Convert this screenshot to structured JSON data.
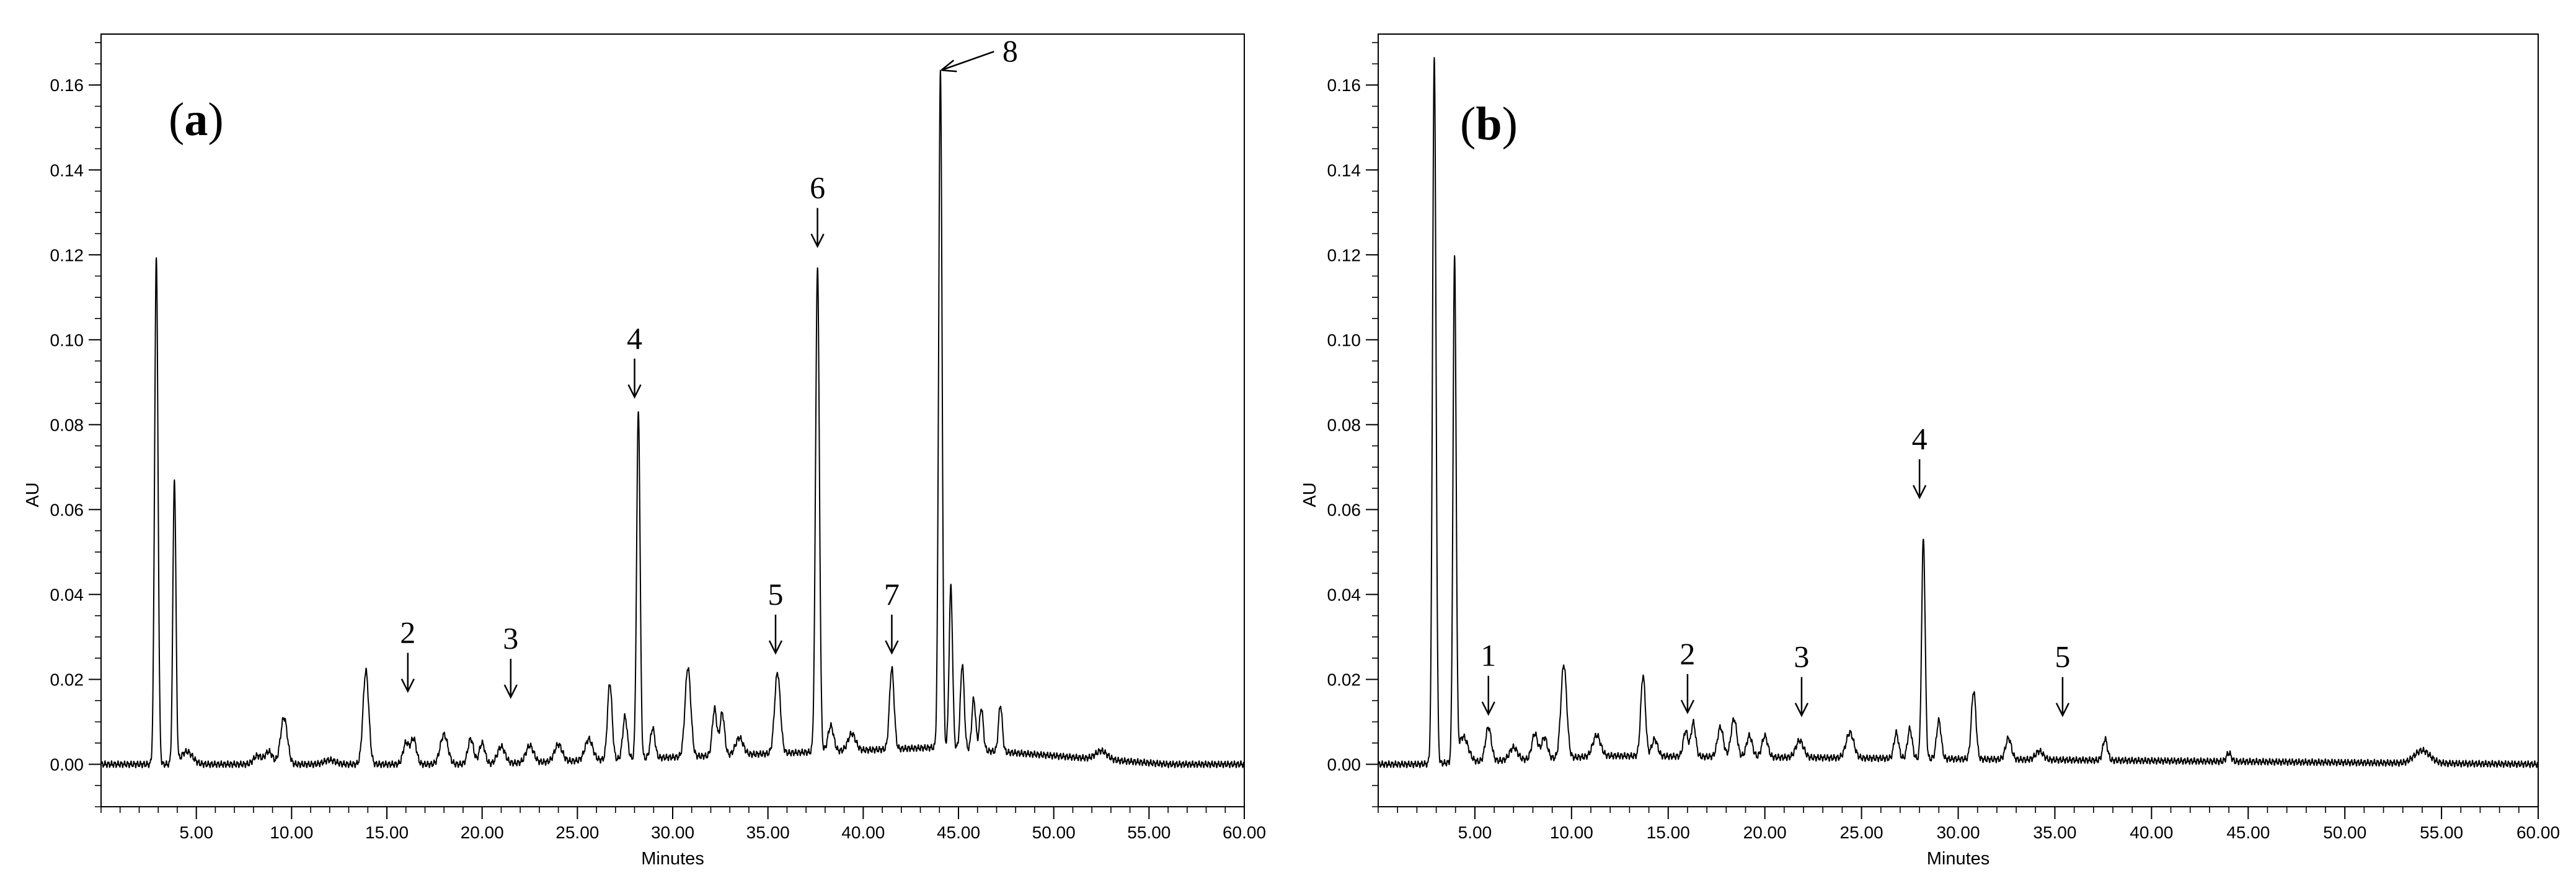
{
  "chart_data": [
    {
      "type": "line",
      "panel_label": "(a)",
      "panel_letter": "a",
      "xlabel": "Minutes",
      "ylabel": "AU",
      "xlim": [
        0,
        60
      ],
      "ylim": [
        -0.01,
        0.172
      ],
      "xticks": [
        5,
        10,
        15,
        20,
        25,
        30,
        35,
        40,
        45,
        50,
        55,
        60
      ],
      "xtick_labels": [
        "5.00",
        "10.00",
        "15.00",
        "20.00",
        "25.00",
        "30.00",
        "35.00",
        "40.00",
        "45.00",
        "50.00",
        "55.00",
        "60.00"
      ],
      "yticks": [
        0,
        0.02,
        0.04,
        0.06,
        0.08,
        0.1,
        0.12,
        0.14,
        0.16
      ],
      "ytick_labels": [
        "0.00",
        "0.02",
        "0.04",
        "0.06",
        "0.08",
        "0.10",
        "0.12",
        "0.14",
        "0.16"
      ],
      "line_color": "#000000",
      "baseline": 0.0,
      "peaks": [
        {
          "t": 2.9,
          "h": 0.119,
          "w": 0.09
        },
        {
          "t": 3.85,
          "h": 0.067,
          "w": 0.08
        },
        {
          "t": 4.5,
          "h": 0.003,
          "w": 0.3
        },
        {
          "t": 8.2,
          "h": 0.002,
          "w": 0.2
        },
        {
          "t": 8.8,
          "h": 0.003,
          "w": 0.2
        },
        {
          "t": 9.6,
          "h": 0.011,
          "w": 0.18
        },
        {
          "t": 12.0,
          "h": 0.001,
          "w": 0.3
        },
        {
          "t": 13.9,
          "h": 0.022,
          "w": 0.15
        },
        {
          "t": 16.0,
          "h": 0.005,
          "w": 0.15
        },
        {
          "t": 16.4,
          "h": 0.006,
          "w": 0.15
        },
        {
          "t": 18.0,
          "h": 0.007,
          "w": 0.2
        },
        {
          "t": 19.4,
          "h": 0.006,
          "w": 0.15
        },
        {
          "t": 20.0,
          "h": 0.005,
          "w": 0.15
        },
        {
          "t": 21.0,
          "h": 0.004,
          "w": 0.2
        },
        {
          "t": 22.5,
          "h": 0.004,
          "w": 0.2
        },
        {
          "t": 24.0,
          "h": 0.004,
          "w": 0.2
        },
        {
          "t": 25.6,
          "h": 0.005,
          "w": 0.2
        },
        {
          "t": 26.7,
          "h": 0.018,
          "w": 0.12
        },
        {
          "t": 27.5,
          "h": 0.01,
          "w": 0.12
        },
        {
          "t": 28.2,
          "h": 0.082,
          "w": 0.09
        },
        {
          "t": 28.95,
          "h": 0.007,
          "w": 0.12
        },
        {
          "t": 30.8,
          "h": 0.021,
          "w": 0.15
        },
        {
          "t": 32.2,
          "h": 0.011,
          "w": 0.12
        },
        {
          "t": 32.6,
          "h": 0.01,
          "w": 0.12
        },
        {
          "t": 33.5,
          "h": 0.004,
          "w": 0.2
        },
        {
          "t": 35.5,
          "h": 0.019,
          "w": 0.15
        },
        {
          "t": 37.6,
          "h": 0.114,
          "w": 0.1
        },
        {
          "t": 38.3,
          "h": 0.006,
          "w": 0.15
        },
        {
          "t": 39.4,
          "h": 0.004,
          "w": 0.2
        },
        {
          "t": 41.5,
          "h": 0.019,
          "w": 0.12
        },
        {
          "t": 44.05,
          "h": 0.159,
          "w": 0.09
        },
        {
          "t": 44.6,
          "h": 0.038,
          "w": 0.09
        },
        {
          "t": 45.2,
          "h": 0.02,
          "w": 0.1
        },
        {
          "t": 45.8,
          "h": 0.012,
          "w": 0.1
        },
        {
          "t": 46.2,
          "h": 0.01,
          "w": 0.1
        },
        {
          "t": 47.2,
          "h": 0.011,
          "w": 0.1
        },
        {
          "t": 52.5,
          "h": 0.002,
          "w": 0.3
        }
      ],
      "hump": {
        "start": 20,
        "peak": 44,
        "end": 56,
        "height": 0.004
      },
      "annotations": [
        {
          "label": "2",
          "x": 16.1,
          "y": 0.0172
        },
        {
          "label": "3",
          "x": 21.5,
          "y": 0.0158
        },
        {
          "label": "4",
          "x": 28.0,
          "y": 0.0865
        },
        {
          "label": "5",
          "x": 35.4,
          "y": 0.0262
        },
        {
          "label": "6",
          "x": 37.6,
          "y": 0.122
        },
        {
          "label": "7",
          "x": 41.5,
          "y": 0.0262
        },
        {
          "label": "8",
          "x": 44.3,
          "y": 0.1665
        }
      ]
    },
    {
      "type": "line",
      "panel_label": "(b)",
      "panel_letter": "b",
      "xlabel": "Minutes",
      "ylabel": "AU",
      "xlim": [
        0,
        60
      ],
      "ylim": [
        -0.01,
        0.172
      ],
      "xticks": [
        5,
        10,
        15,
        20,
        25,
        30,
        35,
        40,
        45,
        50,
        55,
        60
      ],
      "xtick_labels": [
        "5.00",
        "10.00",
        "15.00",
        "20.00",
        "25.00",
        "30.00",
        "35.00",
        "40.00",
        "45.00",
        "50.00",
        "55.00",
        "60.00"
      ],
      "yticks": [
        0,
        0.02,
        0.04,
        0.06,
        0.08,
        0.1,
        0.12,
        0.14,
        0.16
      ],
      "ytick_labels": [
        "0.00",
        "0.02",
        "0.04",
        "0.06",
        "0.08",
        "0.10",
        "0.12",
        "0.14",
        "0.16"
      ],
      "line_color": "#000000",
      "baseline": 0.0,
      "peaks": [
        {
          "t": 2.9,
          "h": 0.166,
          "w": 0.09
        },
        {
          "t": 3.95,
          "h": 0.118,
          "w": 0.08
        },
        {
          "t": 4.4,
          "h": 0.006,
          "w": 0.25
        },
        {
          "t": 5.7,
          "h": 0.008,
          "w": 0.15
        },
        {
          "t": 7.0,
          "h": 0.003,
          "w": 0.2
        },
        {
          "t": 8.1,
          "h": 0.006,
          "w": 0.15
        },
        {
          "t": 8.6,
          "h": 0.005,
          "w": 0.15
        },
        {
          "t": 9.6,
          "h": 0.022,
          "w": 0.15
        },
        {
          "t": 11.3,
          "h": 0.005,
          "w": 0.2
        },
        {
          "t": 13.7,
          "h": 0.019,
          "w": 0.12
        },
        {
          "t": 14.3,
          "h": 0.004,
          "w": 0.15
        },
        {
          "t": 15.9,
          "h": 0.006,
          "w": 0.12
        },
        {
          "t": 16.3,
          "h": 0.008,
          "w": 0.12
        },
        {
          "t": 17.7,
          "h": 0.007,
          "w": 0.15
        },
        {
          "t": 18.4,
          "h": 0.009,
          "w": 0.15
        },
        {
          "t": 19.2,
          "h": 0.005,
          "w": 0.15
        },
        {
          "t": 20.0,
          "h": 0.005,
          "w": 0.15
        },
        {
          "t": 21.8,
          "h": 0.004,
          "w": 0.2
        },
        {
          "t": 24.4,
          "h": 0.006,
          "w": 0.2
        },
        {
          "t": 26.8,
          "h": 0.006,
          "w": 0.12
        },
        {
          "t": 27.5,
          "h": 0.007,
          "w": 0.12
        },
        {
          "t": 28.2,
          "h": 0.052,
          "w": 0.09
        },
        {
          "t": 29.0,
          "h": 0.009,
          "w": 0.12
        },
        {
          "t": 30.8,
          "h": 0.016,
          "w": 0.12
        },
        {
          "t": 32.6,
          "h": 0.005,
          "w": 0.15
        },
        {
          "t": 34.2,
          "h": 0.002,
          "w": 0.2
        },
        {
          "t": 37.6,
          "h": 0.005,
          "w": 0.12
        },
        {
          "t": 44.0,
          "h": 0.002,
          "w": 0.12
        },
        {
          "t": 54.0,
          "h": 0.003,
          "w": 0.4
        }
      ],
      "hump": {
        "start": 2,
        "peak": 12,
        "end": 60,
        "height": 0.002
      },
      "annotations": [
        {
          "label": "1",
          "x": 5.7,
          "y": 0.0118
        },
        {
          "label": "2",
          "x": 16.0,
          "y": 0.0122
        },
        {
          "label": "3",
          "x": 21.9,
          "y": 0.0115
        },
        {
          "label": "4",
          "x": 28.0,
          "y": 0.0628
        },
        {
          "label": "5",
          "x": 35.4,
          "y": 0.0115
        }
      ]
    }
  ]
}
